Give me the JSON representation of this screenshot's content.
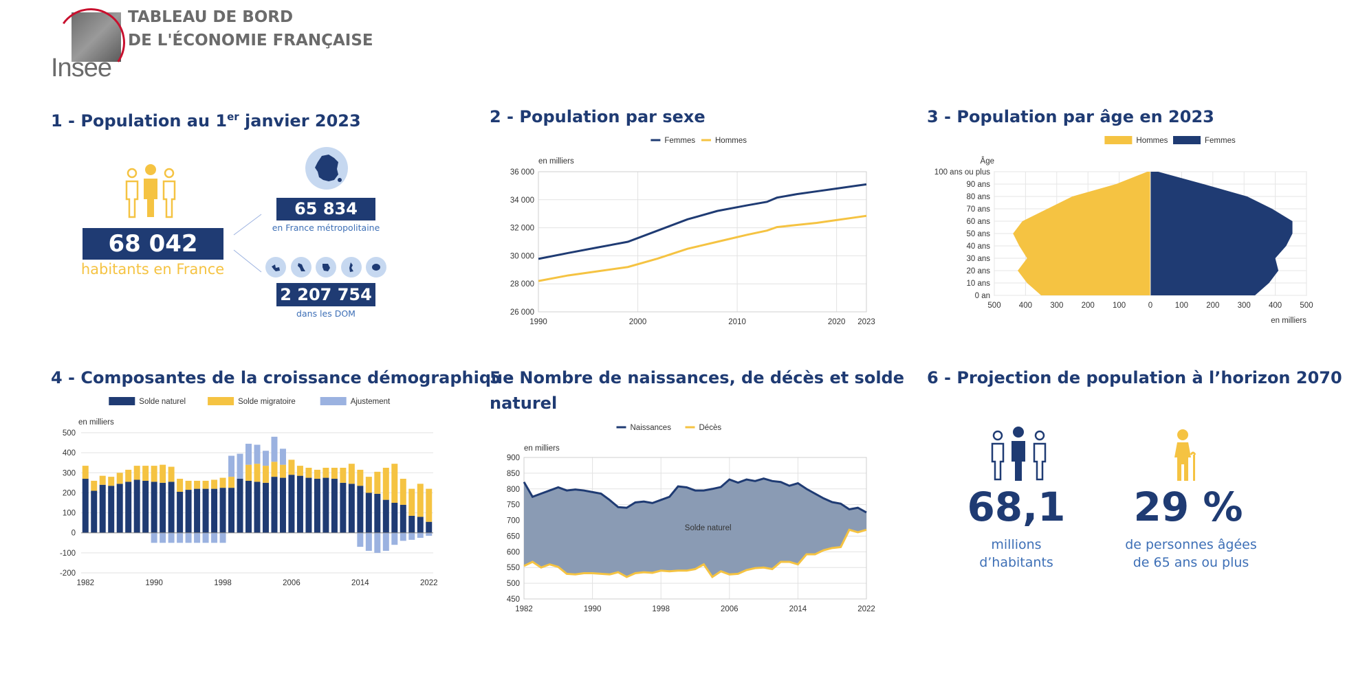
{
  "header": {
    "logo_text": "Insee",
    "title_line1": "TABLEAU DE BORD",
    "title_line2": "DE L'ÉCONOMIE FRANÇAISE"
  },
  "colors": {
    "navy": "#1f3b73",
    "yellow": "#f5c342",
    "lightblue": "#9bb2e0",
    "area": "#8a9bb4",
    "sublabel_blue": "#3d6fb6"
  },
  "section1": {
    "title_pre": "1 - Population au 1",
    "title_sup": "er",
    "title_post": " janvier 2023",
    "total_value": "68 042 591",
    "total_label": "habitants en France",
    "metro_value": "65 834 837",
    "metro_label": "en France métropolitaine",
    "dom_value": "2 207 754",
    "dom_label": "dans les DOM",
    "icons": [
      "people-icon",
      "france-map-icon",
      "dom-island-icons"
    ]
  },
  "section2": {
    "title": "2 - Population par sexe"
  },
  "section3": {
    "title": "3 - Population par âge en 2023"
  },
  "section4": {
    "title": "4 - Composantes de la croissance démographique"
  },
  "section5": {
    "title_line1": "5 - Nombre de naissances, de décès et solde",
    "title_line2": "naturel"
  },
  "section6": {
    "title": "6 - Projection de population à l’horizon 2070",
    "stat1_value": "68,1",
    "stat1_label_line1": "millions",
    "stat1_label_line2": "d’habitants",
    "stat2_value": "29 %",
    "stat2_label_line1": "de personnes âgées",
    "stat2_label_line2": "de 65 ans ou plus"
  },
  "chart_data": [
    {
      "id": "population_par_sexe",
      "type": "line",
      "unit_label": "en milliers",
      "x": [
        1990,
        1993,
        1996,
        1999,
        2002,
        2005,
        2008,
        2011,
        2013,
        2014,
        2016,
        2018,
        2020,
        2022,
        2023
      ],
      "series": [
        {
          "name": "Femmes",
          "color": "#1f3b73",
          "values": [
            29780,
            30200,
            30600,
            31000,
            31800,
            32600,
            33200,
            33600,
            33850,
            34150,
            34400,
            34600,
            34800,
            35000,
            35100
          ]
        },
        {
          "name": "Hommes",
          "color": "#f5c342",
          "values": [
            28200,
            28600,
            28900,
            29200,
            29800,
            30500,
            31000,
            31500,
            31800,
            32050,
            32200,
            32350,
            32550,
            32750,
            32850
          ]
        }
      ],
      "ylim": [
        26000,
        36000
      ],
      "yticks": [
        "26 000",
        "28 000",
        "30 000",
        "32 000",
        "34 000",
        "36 000"
      ],
      "xticks": [
        "1990",
        "2000",
        "2010",
        "2020",
        "2023"
      ],
      "grid": true,
      "legend": "top"
    },
    {
      "id": "population_par_age",
      "type": "bar",
      "orientation": "horizontal",
      "unit_label": "en milliers",
      "y_axis_label": "Âge",
      "age_tick_labels": [
        "0 an",
        "10 ans",
        "20 ans",
        "30 ans",
        "40 ans",
        "50 ans",
        "60 ans",
        "70 ans",
        "80 ans",
        "90 ans",
        "100 ans ou plus"
      ],
      "x_tick_labels": [
        "500",
        "400",
        "300",
        "200",
        "100",
        "0",
        "100",
        "200",
        "300",
        "400",
        "500"
      ],
      "ages_step": 10,
      "series": [
        {
          "name": "Hommes",
          "color": "#f5c342",
          "values": [
            350,
            395,
            425,
            395,
            420,
            440,
            410,
            330,
            250,
            110,
            10
          ]
        },
        {
          "name": "Femmes",
          "color": "#1f3b73",
          "values": [
            335,
            380,
            410,
            400,
            435,
            455,
            455,
            390,
            310,
            170,
            25
          ]
        }
      ],
      "xlim": [
        -500,
        500
      ],
      "legend": "top"
    },
    {
      "id": "composantes_croissance",
      "type": "bar",
      "stacked": true,
      "unit_label": "en milliers",
      "x": [
        1982,
        1983,
        1984,
        1985,
        1986,
        1987,
        1988,
        1989,
        1990,
        1991,
        1992,
        1993,
        1994,
        1995,
        1996,
        1997,
        1998,
        1999,
        2000,
        2001,
        2002,
        2003,
        2004,
        2005,
        2006,
        2007,
        2008,
        2009,
        2010,
        2011,
        2012,
        2013,
        2014,
        2015,
        2016,
        2017,
        2018,
        2019,
        2020,
        2021,
        2022
      ],
      "series": [
        {
          "name": "Solde naturel",
          "color": "#1f3b73",
          "values": [
            270,
            210,
            240,
            235,
            245,
            255,
            265,
            260,
            255,
            250,
            255,
            205,
            215,
            220,
            220,
            220,
            225,
            225,
            270,
            260,
            255,
            250,
            280,
            275,
            290,
            285,
            275,
            270,
            275,
            270,
            250,
            245,
            235,
            200,
            195,
            165,
            150,
            140,
            85,
            80,
            55
          ]
        },
        {
          "name": "Solde migratoire",
          "color": "#f5c342",
          "values": [
            65,
            50,
            45,
            45,
            55,
            60,
            70,
            75,
            80,
            90,
            75,
            65,
            45,
            40,
            40,
            45,
            50,
            55,
            0,
            80,
            90,
            85,
            75,
            65,
            75,
            50,
            50,
            45,
            50,
            55,
            75,
            100,
            80,
            80,
            110,
            160,
            195,
            130,
            135,
            165,
            165
          ]
        },
        {
          "name": "Ajustement",
          "color": "#9bb2e0",
          "values": [
            0,
            0,
            0,
            0,
            0,
            0,
            0,
            0,
            -50,
            -50,
            -50,
            -50,
            -50,
            -50,
            -50,
            -50,
            -50,
            105,
            125,
            105,
            95,
            75,
            125,
            80,
            0,
            0,
            0,
            0,
            0,
            0,
            0,
            0,
            -70,
            -90,
            -100,
            -90,
            -60,
            -40,
            -35,
            -25,
            -15
          ]
        }
      ],
      "ylim": [
        -200,
        500
      ],
      "yticks": [
        "-200",
        "-100",
        "0",
        "100",
        "200",
        "300",
        "400",
        "500"
      ],
      "xticks": [
        "1982",
        "1990",
        "1998",
        "2006",
        "2014",
        "2022"
      ],
      "grid": true,
      "legend": "top"
    },
    {
      "id": "naissances_deces",
      "type": "area",
      "unit_label": "en milliers",
      "annotation": "Solde naturel",
      "x": [
        1982,
        1983,
        1984,
        1985,
        1986,
        1987,
        1988,
        1989,
        1990,
        1991,
        1992,
        1993,
        1994,
        1995,
        1996,
        1997,
        1998,
        1999,
        2000,
        2001,
        2002,
        2003,
        2004,
        2005,
        2006,
        2007,
        2008,
        2009,
        2010,
        2011,
        2012,
        2013,
        2014,
        2015,
        2016,
        2017,
        2018,
        2019,
        2020,
        2021,
        2022
      ],
      "series": [
        {
          "name": "Naissances",
          "color": "#1f3b73",
          "values": [
            822,
            775,
            785,
            795,
            805,
            795,
            798,
            795,
            790,
            785,
            765,
            742,
            740,
            757,
            760,
            755,
            765,
            775,
            808,
            805,
            795,
            795,
            800,
            806,
            830,
            820,
            830,
            825,
            833,
            825,
            822,
            810,
            818,
            800,
            785,
            770,
            758,
            753,
            735,
            740,
            725
          ]
        },
        {
          "name": "Décès",
          "color": "#f5c342",
          "values": [
            555,
            568,
            550,
            560,
            552,
            530,
            528,
            532,
            532,
            530,
            528,
            535,
            520,
            532,
            535,
            533,
            540,
            538,
            540,
            540,
            545,
            560,
            520,
            538,
            528,
            530,
            542,
            548,
            550,
            545,
            568,
            568,
            560,
            592,
            592,
            605,
            612,
            615,
            670,
            662,
            670
          ]
        }
      ],
      "ylim": [
        450,
        900
      ],
      "yticks": [
        "450",
        "500",
        "550",
        "600",
        "650",
        "700",
        "750",
        "800",
        "850",
        "900"
      ],
      "xticks": [
        "1982",
        "1990",
        "1998",
        "2006",
        "2014",
        "2022"
      ],
      "grid": true,
      "legend": "top"
    }
  ]
}
